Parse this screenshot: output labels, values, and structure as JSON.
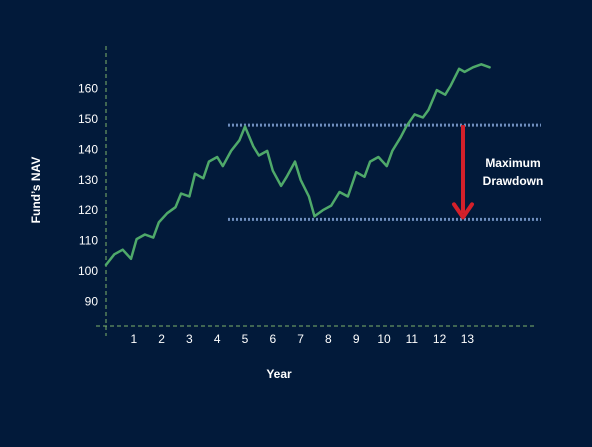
{
  "chart_data": {
    "type": "line",
    "title": "",
    "xlabel": "Year",
    "ylabel": "Fund’s NAV",
    "x_ticks": [
      "1",
      "2",
      "3",
      "4",
      "5",
      "6",
      "7",
      "8",
      "9",
      "10",
      "11",
      "12",
      "13"
    ],
    "y_ticks": [
      "90",
      "100",
      "110",
      "120",
      "130",
      "140",
      "150",
      "160"
    ],
    "xlim": [
      0,
      15
    ],
    "ylim": [
      82,
      171
    ],
    "grid": false,
    "colors": {
      "background": "#021a3a",
      "line": "#4fa96a",
      "reference_lines": "#6f8fbf",
      "axes": "#7fb36a",
      "arrow": "#d4202a",
      "text": "#ffffff"
    },
    "series": [
      {
        "x": [
          0,
          0.3,
          0.6,
          0.9,
          1.1,
          1.4,
          1.7,
          1.9,
          2.2,
          2.5,
          2.7,
          3.0,
          3.2,
          3.5,
          3.7,
          4.0,
          4.2,
          4.5,
          4.8,
          5.0,
          5.3,
          5.5,
          5.8,
          6.0,
          6.3,
          6.5,
          6.8,
          7.0,
          7.3,
          7.5,
          7.8,
          8.1,
          8.4,
          8.7,
          9.0,
          9.3,
          9.5,
          9.8,
          10.1,
          10.3,
          10.6,
          10.8,
          11.1,
          11.4,
          11.6,
          11.9,
          12.2,
          12.4,
          12.7,
          12.9,
          13.2,
          13.5,
          13.8
        ],
        "values": [
          102,
          105.5,
          107,
          104,
          110.5,
          112,
          111,
          116,
          119,
          121,
          125.5,
          124.5,
          132,
          130.5,
          136,
          137.5,
          134.5,
          139.5,
          143,
          147.5,
          141,
          138,
          139.5,
          133,
          128,
          131,
          136,
          130,
          124.5,
          118,
          120,
          121.5,
          126,
          124.5,
          132.5,
          131,
          136,
          137.5,
          134.5,
          139.5,
          144,
          147.5,
          151.5,
          150.5,
          153,
          159.5,
          158,
          161,
          166.5,
          165.5,
          167,
          168,
          167
        ]
      }
    ],
    "reference_lines": [
      {
        "y": 148,
        "x_start": 4.1,
        "x_end": 15
      },
      {
        "y": 117,
        "x_start": 4.1,
        "x_end": 15
      }
    ],
    "annotations": [
      {
        "text_lines": [
          "Maximum",
          "Drawdown"
        ],
        "arrow_x": 13.0,
        "arrow_from_y": 148,
        "arrow_to_y": 117
      }
    ]
  }
}
